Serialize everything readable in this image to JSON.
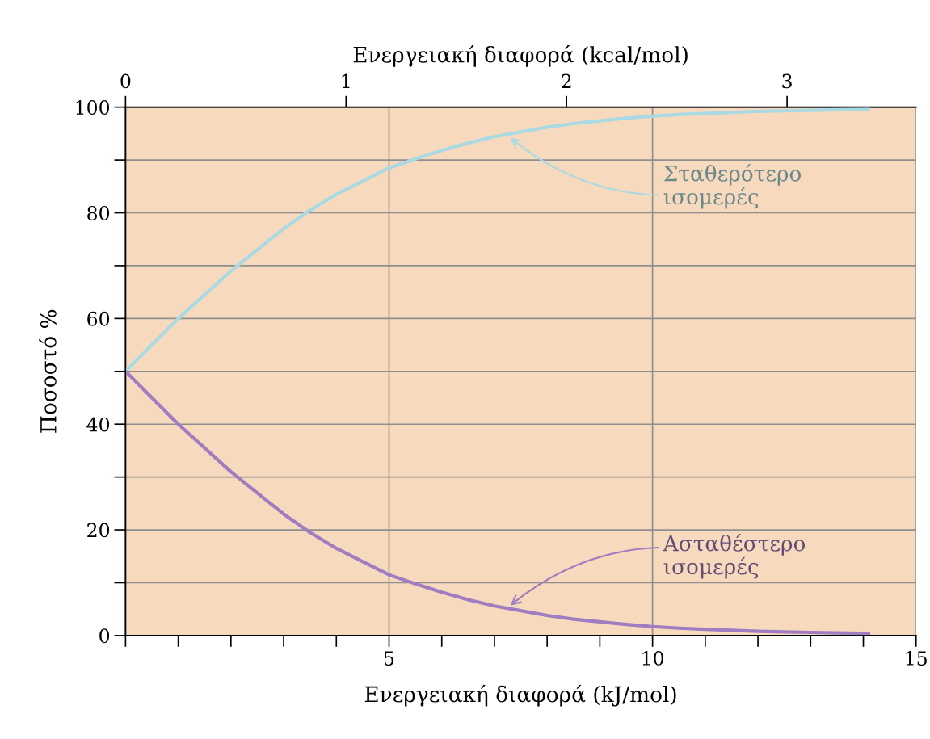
{
  "chart_data": {
    "type": "line",
    "xlabel": "Ενεργειακή διαφορά (kJ/mol)",
    "x2label": "Ενεργειακή διαφορά (kcal/mol)",
    "ylabel": "Ποσοστό %",
    "x": [
      0,
      0.5,
      1,
      1.5,
      2,
      2.5,
      3,
      3.5,
      4,
      4.5,
      5,
      5.5,
      6,
      6.5,
      7,
      7.5,
      8,
      8.5,
      9,
      9.5,
      10,
      10.5,
      11,
      11.5,
      12,
      12.5,
      13,
      13.5,
      14.1
    ],
    "series": [
      {
        "color": "#a9d9e3",
        "values": [
          50,
          55,
          60,
          64.5,
          69,
          73,
          77,
          80.5,
          83.5,
          86,
          88.5,
          90.2,
          91.8,
          93.2,
          94.4,
          95.3,
          96.2,
          96.9,
          97.4,
          97.9,
          98.3,
          98.6,
          98.8,
          99,
          99.2,
          99.3,
          99.4,
          99.5,
          99.6
        ]
      },
      {
        "color": "#a07cc0",
        "values": [
          50,
          45,
          40,
          35.5,
          31,
          27,
          23,
          19.5,
          16.5,
          14,
          11.5,
          9.8,
          8.2,
          6.8,
          5.6,
          4.7,
          3.8,
          3.1,
          2.6,
          2.1,
          1.7,
          1.4,
          1.2,
          1,
          0.8,
          0.7,
          0.6,
          0.5,
          0.4
        ]
      }
    ],
    "annotations": [
      {
        "text": "Σταθερότερο\nισομερές",
        "x": 7.3,
        "y": 94.2
      },
      {
        "text": "Ασταθέστερο\nισομερές",
        "x": 7.3,
        "y": 5.7
      }
    ],
    "xlim": [
      0,
      15
    ],
    "xticks": [
      {
        "value": 0,
        "label": null
      },
      {
        "value": 1,
        "label": null
      },
      {
        "value": 2,
        "label": null
      },
      {
        "value": 3,
        "label": null
      },
      {
        "value": 4,
        "label": null
      },
      5,
      {
        "value": 6,
        "label": null
      },
      {
        "value": 7,
        "label": null
      },
      {
        "value": 8,
        "label": null
      },
      {
        "value": 9,
        "label": null
      },
      10,
      {
        "value": 11,
        "label": null
      },
      {
        "value": 12,
        "label": null
      },
      {
        "value": 13,
        "label": null
      },
      {
        "value": 14,
        "label": null
      },
      15
    ],
    "x2lim": [
      0,
      3.585
    ],
    "x2ticks": [
      0,
      1,
      2,
      3
    ],
    "ylim": [
      0,
      100
    ],
    "yticks": [
      0,
      {
        "value": 10,
        "label": null
      },
      20,
      {
        "value": 30,
        "label": null
      },
      40,
      {
        "value": 50,
        "label": null
      },
      60,
      {
        "value": 70,
        "label": null
      },
      80,
      {
        "value": 90,
        "label": null
      },
      100
    ],
    "grid": true,
    "line_style": "solid",
    "marker": "none"
  }
}
